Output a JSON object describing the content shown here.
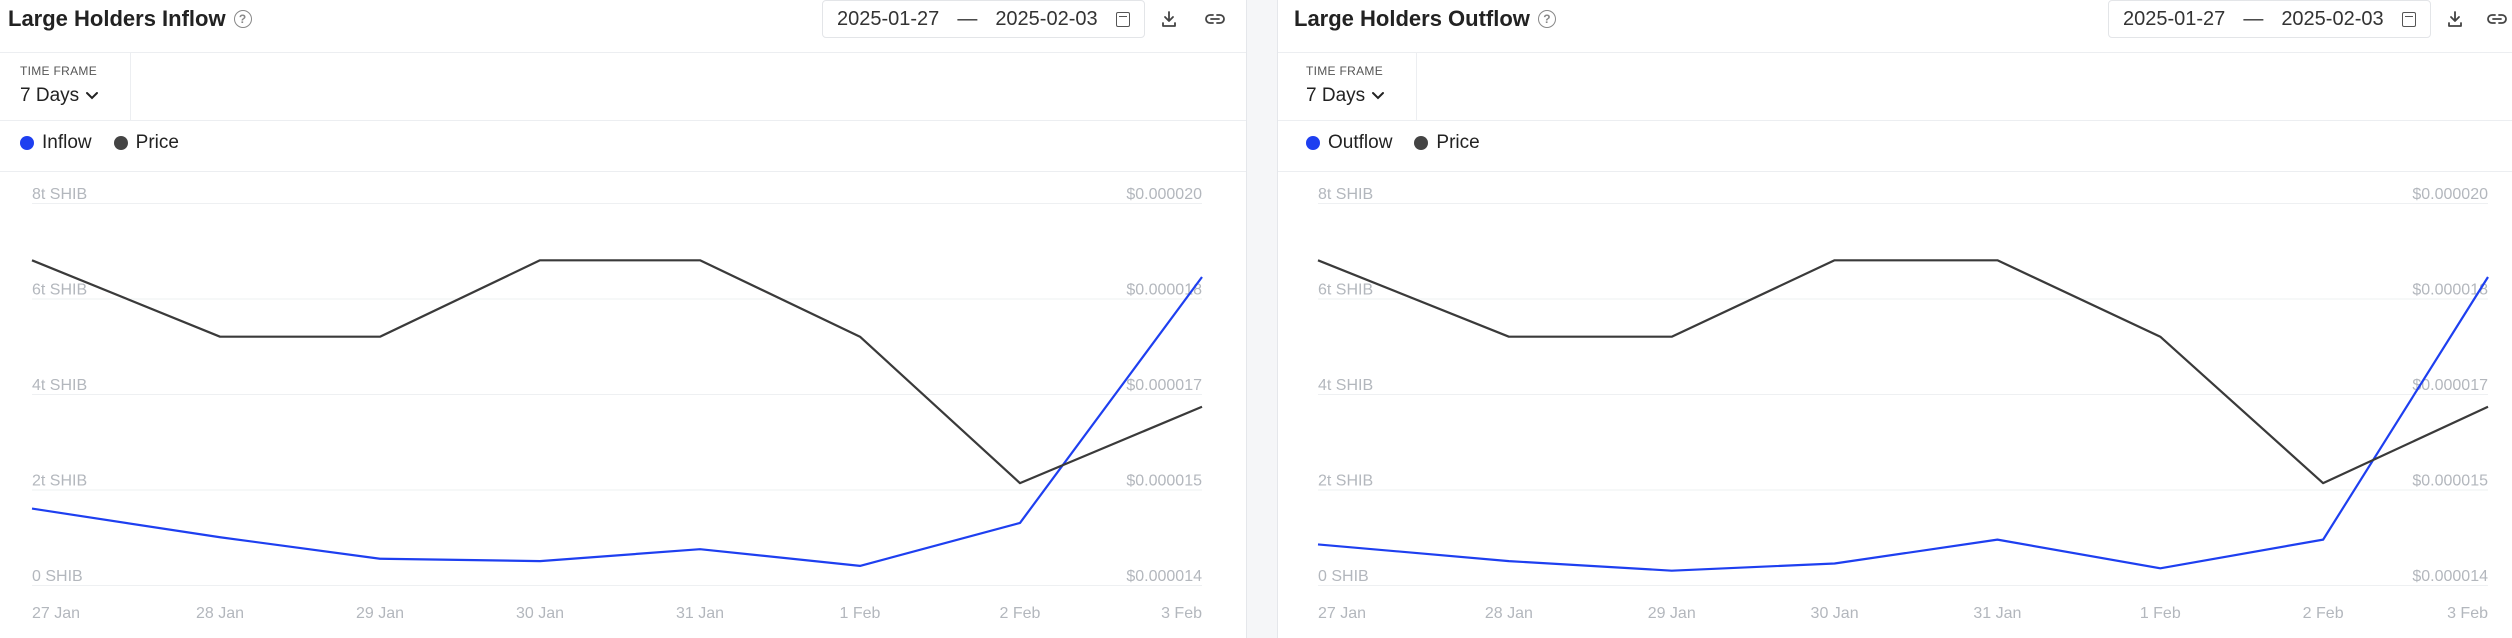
{
  "colors": {
    "inflow": "#1e3ff0",
    "outflow": "#1e3ff0",
    "price": "#3a3a3a",
    "grid": "#eef0f2"
  },
  "panels": [
    {
      "title": "Large Holders Inflow",
      "date_start": "2025-01-27",
      "date_separator": "—",
      "date_end": "2025-02-03",
      "timeframe_label": "TIME FRAME",
      "timeframe_value": "7 Days",
      "legend": [
        "Inflow",
        "Price"
      ]
    },
    {
      "title": "Large Holders Outflow",
      "date_start": "2025-01-27",
      "date_separator": "—",
      "date_end": "2025-02-03",
      "timeframe_label": "TIME FRAME",
      "timeframe_value": "7 Days",
      "legend": [
        "Outflow",
        "Price"
      ]
    }
  ],
  "chart_data": [
    {
      "type": "line",
      "title": "Large Holders Inflow",
      "categories": [
        "27 Jan",
        "28 Jan",
        "29 Jan",
        "30 Jan",
        "31 Jan",
        "1 Feb",
        "2 Feb",
        "3 Feb"
      ],
      "y_left_ticks": [
        "0 SHIB",
        "2t SHIB",
        "4t SHIB",
        "6t SHIB",
        "8t SHIB"
      ],
      "y_left_range": [
        0,
        8
      ],
      "y_left_unit": "trillion SHIB",
      "y_right_ticks": [
        "$0.000014",
        "$0.000015",
        "$0.000017",
        "$0.000018",
        "$0.000020"
      ],
      "y_right_range": [
        1.4e-05,
        2e-05
      ],
      "grid": true,
      "legend_position": "top-left",
      "series": [
        {
          "name": "Inflow",
          "axis": "left",
          "values": [
            1.6,
            1.0,
            0.55,
            0.5,
            0.75,
            0.4,
            1.3,
            6.45
          ]
        },
        {
          "name": "Price",
          "axis": "right",
          "values": [
            1.91e-05,
            1.79e-05,
            1.79e-05,
            1.91e-05,
            1.91e-05,
            1.79e-05,
            1.56e-05,
            1.68e-05
          ]
        }
      ]
    },
    {
      "type": "line",
      "title": "Large Holders Outflow",
      "categories": [
        "27 Jan",
        "28 Jan",
        "29 Jan",
        "30 Jan",
        "31 Jan",
        "1 Feb",
        "2 Feb",
        "3 Feb"
      ],
      "y_left_ticks": [
        "0 SHIB",
        "2t SHIB",
        "4t SHIB",
        "6t SHIB",
        "8t SHIB"
      ],
      "y_left_range": [
        0,
        8
      ],
      "y_left_unit": "trillion SHIB",
      "y_right_ticks": [
        "$0.000014",
        "$0.000015",
        "$0.000017",
        "$0.000018",
        "$0.000020"
      ],
      "y_right_range": [
        1.4e-05,
        2e-05
      ],
      "grid": true,
      "legend_position": "top-left",
      "series": [
        {
          "name": "Outflow",
          "axis": "left",
          "values": [
            0.85,
            0.5,
            0.3,
            0.45,
            0.95,
            0.35,
            0.95,
            6.45
          ]
        },
        {
          "name": "Price",
          "axis": "right",
          "values": [
            1.91e-05,
            1.79e-05,
            1.79e-05,
            1.91e-05,
            1.91e-05,
            1.79e-05,
            1.56e-05,
            1.68e-05
          ]
        }
      ]
    }
  ]
}
